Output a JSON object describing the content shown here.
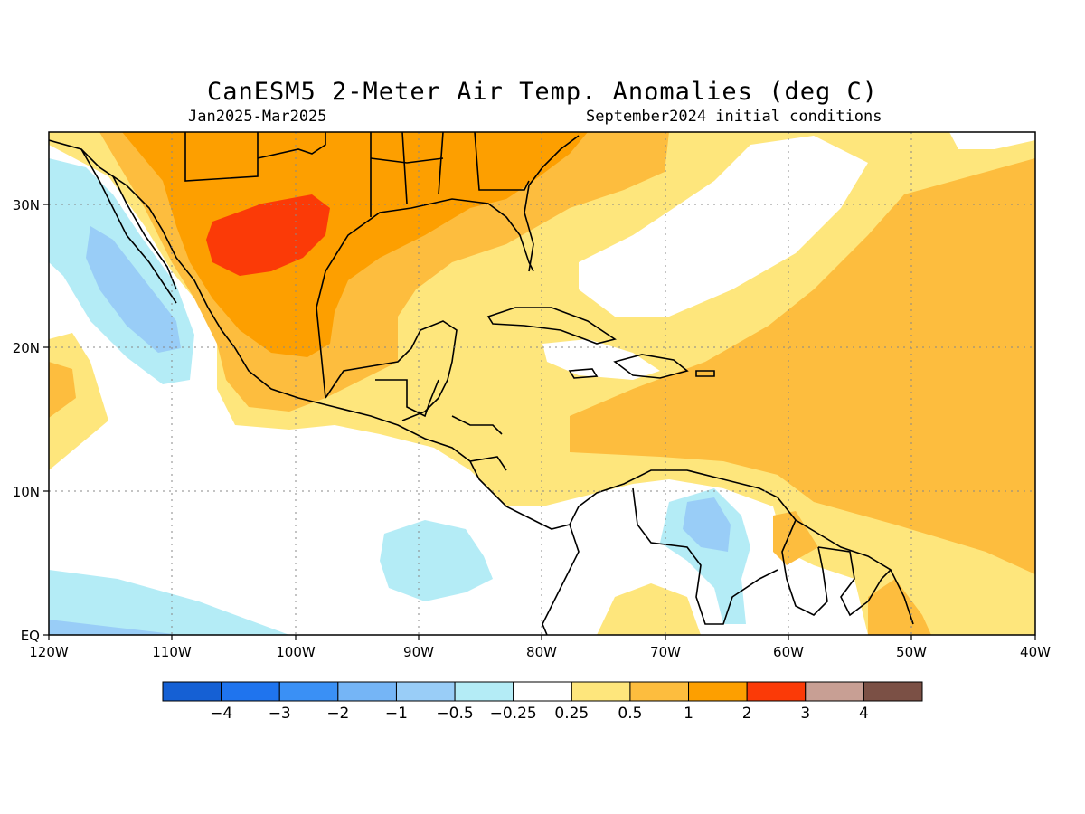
{
  "title": "CanESM5 2-Meter Air Temp. Anomalies (deg C)",
  "period": "Jan2025-Mar2025",
  "init": "September2024 initial conditions",
  "map": {
    "lon_range": [
      -120,
      -40
    ],
    "lat_range": [
      0,
      35
    ],
    "x_ticks": [
      "120W",
      "110W",
      "100W",
      "90W",
      "80W",
      "70W",
      "60W",
      "50W",
      "40W"
    ],
    "y_ticks": [
      "EQ",
      "10N",
      "20N",
      "30N"
    ],
    "grid": true
  },
  "colorbar": {
    "labels": [
      "-4",
      "-3",
      "-2",
      "-1",
      "-0.5",
      "-0.25",
      "0.25",
      "0.5",
      "1",
      "2",
      "3",
      "4"
    ],
    "colors": [
      "#1560d4",
      "#1f74ee",
      "#3a90f5",
      "#75b5f6",
      "#99cdf7",
      "#b4ecf6",
      "#ffffff",
      "#fee67c",
      "#fdbd3e",
      "#fd9f00",
      "#fb3a07",
      "#c89f94",
      "#7b5045"
    ]
  },
  "colors": {
    "neg_small": "#b4ecf6",
    "neg_mid": "#99cdf7",
    "neg_low": "#75b5f6",
    "pos_small": "#fee67c",
    "pos_mid": "#fdbd3e",
    "pos_high": "#fd9f00",
    "pos_top": "#fb3a07"
  }
}
